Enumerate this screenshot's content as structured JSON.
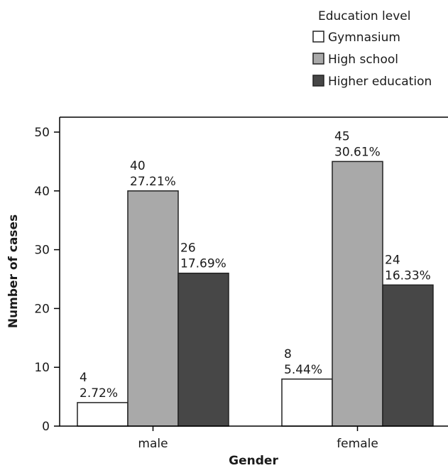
{
  "chart_data": {
    "type": "bar",
    "categories": [
      "male",
      "female"
    ],
    "series": [
      {
        "name": "Gymnasium",
        "values": [
          4,
          8
        ],
        "labels": [
          "2.72%",
          "5.44%"
        ],
        "color": "#ffffff"
      },
      {
        "name": "High school",
        "values": [
          40,
          45
        ],
        "labels": [
          "27.21%",
          "30.61%"
        ],
        "color": "#a9a9a9"
      },
      {
        "name": "Higher education",
        "values": [
          26,
          24
        ],
        "labels": [
          "17.69%",
          "16.33%"
        ],
        "color": "#474747"
      }
    ],
    "legend_title": "Education level",
    "legend_position": "top-right",
    "xlabel": "Gender",
    "ylabel": "Number of cases",
    "ylim": [
      0,
      50
    ],
    "yticks": [
      "0",
      "10",
      "20",
      "30",
      "40",
      "50"
    ],
    "grid": false
  }
}
